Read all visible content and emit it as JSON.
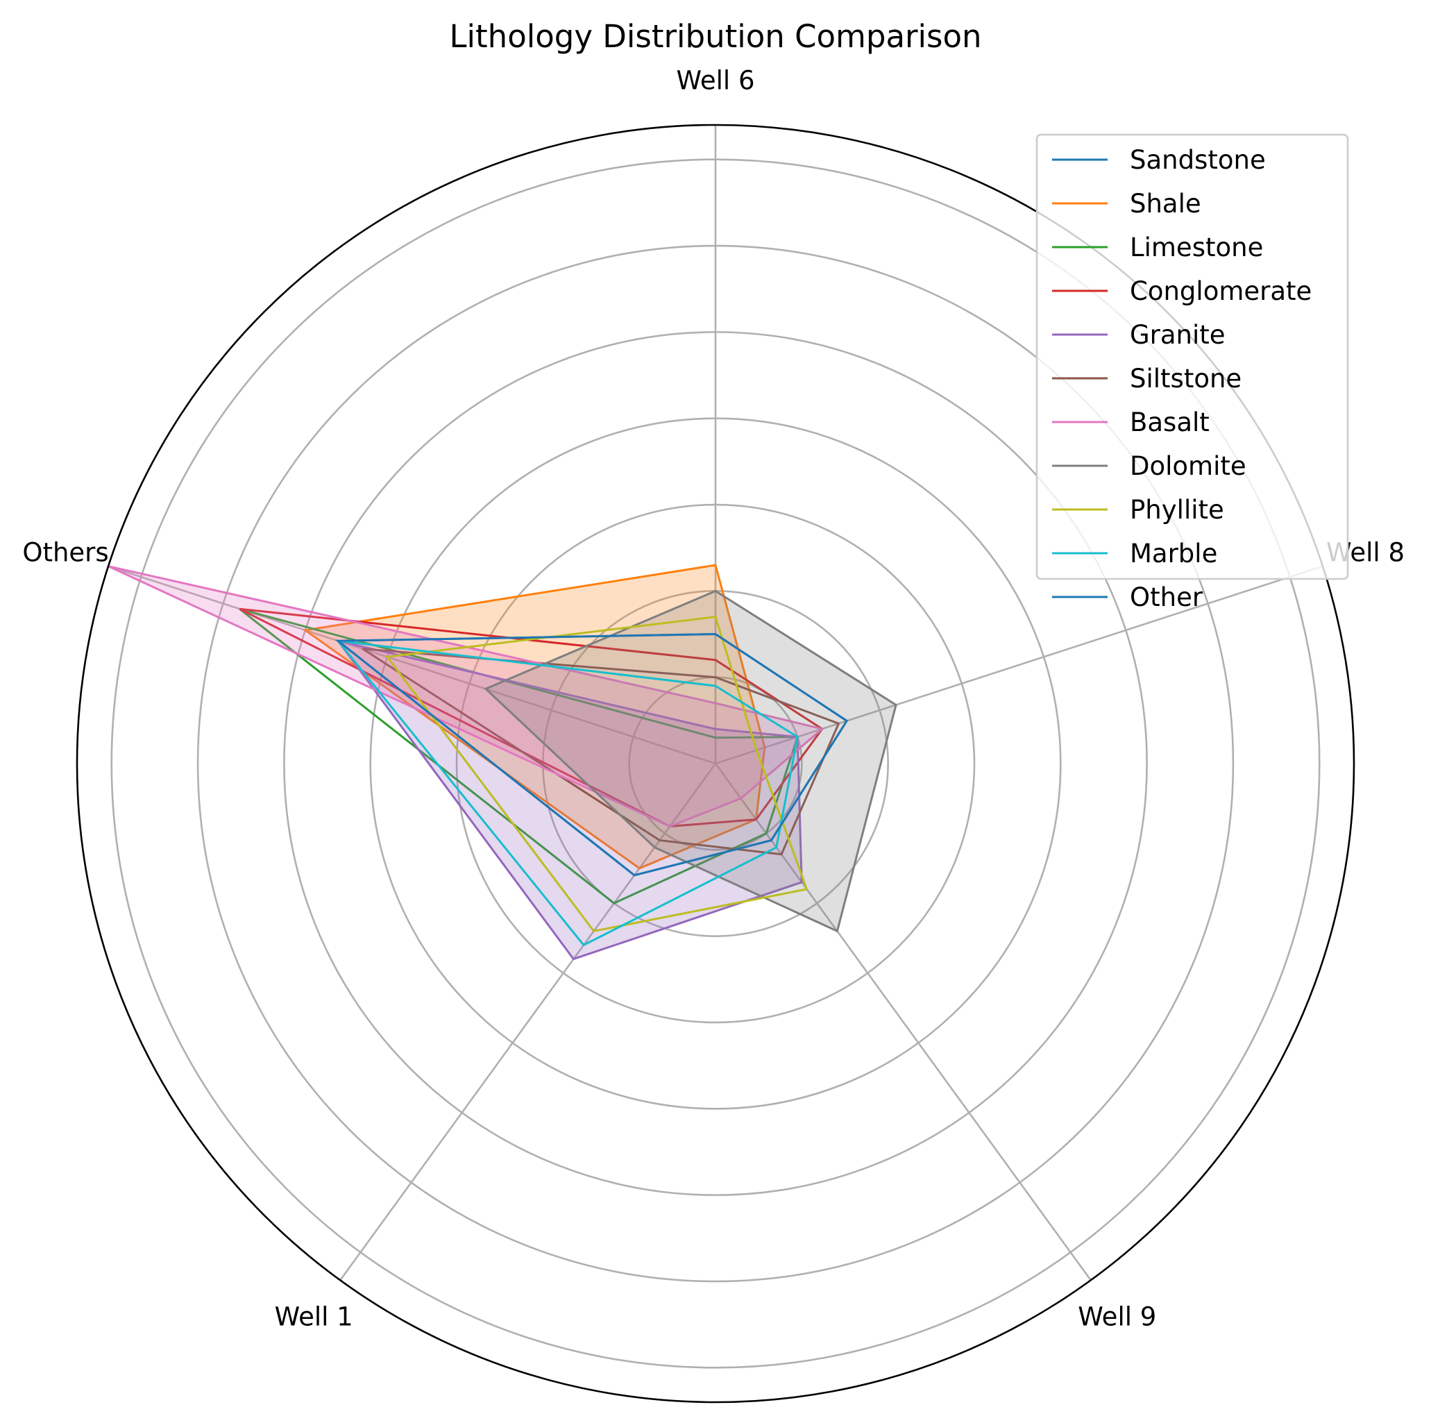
{
  "chart_data": {
    "type": "radar",
    "title": "Lithology Distribution Comparison",
    "axes": [
      "Well 6",
      "Well 8",
      "Well 9",
      "Well 1",
      "Others"
    ],
    "rmax": 37,
    "rings": [
      5,
      10,
      15,
      20,
      25,
      30,
      35
    ],
    "grid": true,
    "legend_position": "top-right",
    "series": [
      {
        "name": "Sandstone",
        "color": "#1f77b4",
        "filled": false,
        "values": [
          7.5,
          8,
          5.5,
          8,
          23
        ]
      },
      {
        "name": "Shale",
        "color": "#ff7f0e",
        "filled": true,
        "values": [
          11.5,
          3,
          4,
          7.5,
          25
        ]
      },
      {
        "name": "Limestone",
        "color": "#2ca02c",
        "filled": false,
        "values": [
          1.5,
          5,
          5,
          10,
          29
        ]
      },
      {
        "name": "Conglomerate",
        "color": "#d62728",
        "filled": false,
        "values": [
          6,
          6.5,
          4,
          4.5,
          29
        ]
      },
      {
        "name": "Granite",
        "color": "#9467bd",
        "filled": true,
        "values": [
          2,
          5,
          8.5,
          14,
          23
        ]
      },
      {
        "name": "Siltstone",
        "color": "#8c564b",
        "filled": false,
        "values": [
          5,
          7.5,
          6.5,
          5.5,
          21.5
        ]
      },
      {
        "name": "Basalt",
        "color": "#e377c2",
        "filled": true,
        "values": [
          3.5,
          6.5,
          2.5,
          4.5,
          37
        ]
      },
      {
        "name": "Dolomite",
        "color": "#7f7f7f",
        "filled": true,
        "values": [
          10,
          11,
          12,
          6,
          14
        ]
      },
      {
        "name": "Phyllite",
        "color": "#bcbd22",
        "filled": false,
        "values": [
          8.5,
          2.5,
          9,
          12,
          20
        ]
      },
      {
        "name": "Marble",
        "color": "#17becf",
        "filled": false,
        "values": [
          4.5,
          5,
          6,
          13,
          23
        ]
      },
      {
        "name": "Other",
        "color": "#1f77b4",
        "filled": false,
        "values": [
          7.5,
          8,
          5.5,
          8,
          23
        ]
      }
    ]
  }
}
